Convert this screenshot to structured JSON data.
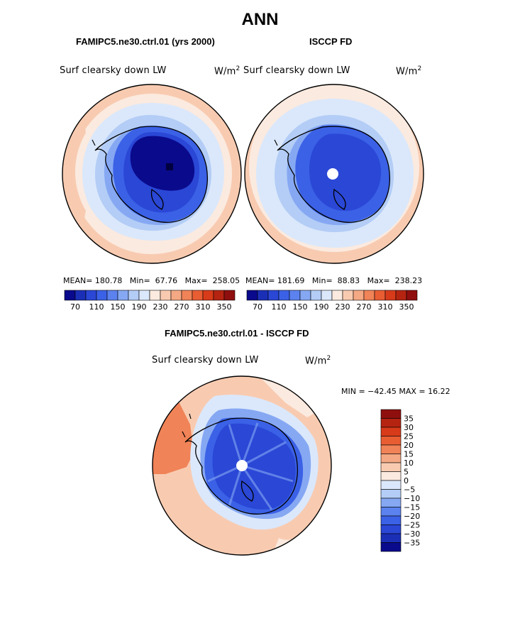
{
  "page_title": "ANN",
  "panels": [
    {
      "subtitle": "FAMIPC5.ne30.ctrl.01 (yrs 2000)",
      "variable": "Surf clearsky down LW",
      "units_base": "W/m",
      "units_exp": "2",
      "mean_label": "MEAN=",
      "mean": "180.78",
      "min_label": "Min=",
      "min": "67.76",
      "max_label": "Max=",
      "max": "258.05"
    },
    {
      "subtitle": "ISCCP FD",
      "variable": "Surf clearsky down LW",
      "units_base": "W/m",
      "units_exp": "2",
      "mean_label": "MEAN=",
      "mean": "181.69",
      "min_label": "Min=",
      "min": "88.83",
      "max_label": "Max=",
      "max": "238.23"
    }
  ],
  "diff_panel": {
    "subtitle": "FAMIPC5.ne30.ctrl.01 - ISCCP FD",
    "variable": "Surf clearsky down LW",
    "units_base": "W/m",
    "units_exp": "2",
    "minmax_text": "MIN = −42.45 MAX =  16.22"
  },
  "chart_data": [
    {
      "type": "heatmap",
      "projection": "south-polar-stereographic",
      "title": "FAMIPC5.ne30.ctrl.01 (yrs 2000)",
      "variable": "Surf clearsky down LW",
      "units": "W/m2",
      "stats": {
        "mean": 180.78,
        "min": 67.76,
        "max": 258.05
      },
      "colorbar_ticks": [
        70,
        110,
        150,
        190,
        230,
        270,
        310,
        350
      ],
      "colorbar_ticks_labels": [
        "70",
        "110",
        "150",
        "190",
        "230",
        "270",
        "310",
        "350"
      ],
      "colorbar_colors": [
        "#0a0a8c",
        "#1b2fb6",
        "#2a47d6",
        "#3b61e6",
        "#5b82ee",
        "#86a8f3",
        "#b3cdf6",
        "#dbe8fb",
        "#fbeadf",
        "#f8cbb1",
        "#f4a883",
        "#f08357",
        "#e95d33",
        "#d83b1a",
        "#b52411",
        "#8f0f0f"
      ],
      "legend_position": "bottom"
    },
    {
      "type": "heatmap",
      "projection": "south-polar-stereographic",
      "title": "ISCCP FD",
      "variable": "Surf clearsky down LW",
      "units": "W/m2",
      "stats": {
        "mean": 181.69,
        "min": 88.83,
        "max": 238.23
      },
      "colorbar_ticks": [
        70,
        110,
        150,
        190,
        230,
        270,
        310,
        350
      ],
      "colorbar_ticks_labels": [
        "70",
        "110",
        "150",
        "190",
        "230",
        "270",
        "310",
        "350"
      ],
      "legend_position": "bottom"
    },
    {
      "type": "heatmap",
      "projection": "south-polar-stereographic",
      "title": "FAMIPC5.ne30.ctrl.01 - ISCCP FD",
      "variable": "Surf clearsky down LW",
      "units": "W/m2",
      "stats": {
        "min": -42.45,
        "max": 16.22
      },
      "colorbar_ticks": [
        35,
        30,
        25,
        20,
        15,
        10,
        5,
        0,
        -5,
        -10,
        -15,
        -20,
        -25,
        -30,
        -35
      ],
      "colorbar_ticks_labels": [
        "35",
        "30",
        "25",
        "20",
        "15",
        "10",
        "5",
        "0",
        "−5",
        "−10",
        "−15",
        "−20",
        "−25",
        "−30",
        "−35"
      ],
      "colorbar_colors": [
        "#8f0f0f",
        "#b52411",
        "#d83b1a",
        "#e95d33",
        "#f08357",
        "#f4a883",
        "#f8cbb1",
        "#fbeadf",
        "#dbe8fb",
        "#b3cdf6",
        "#86a8f3",
        "#5b82ee",
        "#3b61e6",
        "#2a47d6",
        "#1b2fb6",
        "#0a0a8c"
      ],
      "legend_position": "right"
    }
  ]
}
